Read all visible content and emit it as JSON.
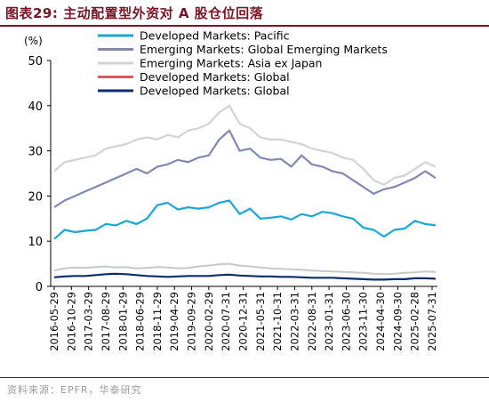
{
  "figure": {
    "title": "图表29:  主动配置型外资对 A 股仓位回落",
    "source": "资料来源：EPFR，华泰研究"
  },
  "colors": {
    "title": "#7a1322",
    "pacific": "#1aa7d8",
    "gem": "#7f88b4",
    "asia": "#d3d3d3",
    "global_red": "#e25656",
    "global_navy": "#0c2d6b"
  },
  "chart_data": {
    "type": "line",
    "ylabel": "(%)",
    "ylim": [
      0,
      50
    ],
    "yticks": [
      0,
      10,
      20,
      30,
      40,
      50
    ],
    "x_tick_labels": [
      "2016-05-29",
      "2016-10-29",
      "2017-03-29",
      "2017-08-29",
      "2018-01-29",
      "2018-06-29",
      "2018-11-29",
      "2019-04-29",
      "2019-09-29",
      "2020-02-29",
      "2020-07-31",
      "2020-12-31",
      "2021-05-31",
      "2021-10-31",
      "2022-03-31",
      "2022-08-31",
      "2023-01-31",
      "2023-06-30",
      "2023-11-30",
      "2024-04-30",
      "2024-09-30",
      "2025-02-28",
      "2025-07-31"
    ],
    "legend_position": "top",
    "series": [
      {
        "name": "Developed Markets: Pacific",
        "color": "#1aa7d8",
        "width": 2.2,
        "x": [
          "2016-05",
          "2016-08",
          "2016-11",
          "2017-02",
          "2017-05",
          "2017-08",
          "2017-11",
          "2018-02",
          "2018-05",
          "2018-08",
          "2018-11",
          "2019-02",
          "2019-05",
          "2019-08",
          "2019-11",
          "2020-02",
          "2020-05",
          "2020-08",
          "2020-11",
          "2021-02",
          "2021-05",
          "2021-08",
          "2021-11",
          "2022-02",
          "2022-05",
          "2022-08",
          "2022-11",
          "2023-02",
          "2023-05",
          "2023-08",
          "2023-11",
          "2024-02",
          "2024-05",
          "2024-08",
          "2024-11",
          "2025-02",
          "2025-05",
          "2025-08"
        ],
        "y": [
          10.5,
          12.5,
          12,
          12.3,
          12.5,
          13.8,
          13.5,
          14.5,
          13.8,
          15,
          18,
          18.5,
          17,
          17.5,
          17.2,
          17.5,
          18.5,
          19,
          16,
          17.2,
          15,
          15.2,
          15.5,
          14.8,
          16,
          15.5,
          16.5,
          16.2,
          15.5,
          15,
          13,
          12.5,
          11,
          12.5,
          12.8,
          14.5,
          13.8,
          13.5
        ]
      },
      {
        "name": "Emerging Markets: Global Emerging Markets",
        "color": "#7f88b4",
        "width": 2.2,
        "x": [
          "2016-05",
          "2016-08",
          "2016-11",
          "2017-02",
          "2017-05",
          "2017-08",
          "2017-11",
          "2018-02",
          "2018-05",
          "2018-08",
          "2018-11",
          "2019-02",
          "2019-05",
          "2019-08",
          "2019-11",
          "2020-02",
          "2020-05",
          "2020-08",
          "2020-11",
          "2021-02",
          "2021-05",
          "2021-08",
          "2021-11",
          "2022-02",
          "2022-05",
          "2022-08",
          "2022-11",
          "2023-02",
          "2023-05",
          "2023-08",
          "2023-11",
          "2024-02",
          "2024-05",
          "2024-08",
          "2024-11",
          "2025-02",
          "2025-05",
          "2025-08"
        ],
        "y": [
          17.5,
          19,
          20,
          21,
          22,
          23,
          24,
          25,
          26,
          25,
          26.5,
          27,
          28,
          27.5,
          28.5,
          29,
          32.5,
          34.5,
          30,
          30.5,
          28.5,
          28,
          28.2,
          26.5,
          29,
          27,
          26.5,
          25.5,
          25,
          23.5,
          22,
          20.5,
          21.5,
          22,
          23,
          24,
          25.5,
          24
        ]
      },
      {
        "name": "Emerging Markets: Asia ex Japan",
        "color": "#d3d3d3",
        "width": 2.2,
        "x": [
          "2016-05",
          "2016-08",
          "2016-11",
          "2017-02",
          "2017-05",
          "2017-08",
          "2017-11",
          "2018-02",
          "2018-05",
          "2018-08",
          "2018-11",
          "2019-02",
          "2019-05",
          "2019-08",
          "2019-11",
          "2020-02",
          "2020-05",
          "2020-08",
          "2020-11",
          "2021-02",
          "2021-05",
          "2021-08",
          "2021-11",
          "2022-02",
          "2022-05",
          "2022-08",
          "2022-11",
          "2023-02",
          "2023-05",
          "2023-08",
          "2023-11",
          "2024-02",
          "2024-05",
          "2024-08",
          "2024-11",
          "2025-02",
          "2025-05",
          "2025-08"
        ],
        "y": [
          25.5,
          27.5,
          28,
          28.5,
          29,
          30.5,
          31,
          31.5,
          32.5,
          33,
          32.5,
          33.5,
          33,
          34.5,
          35,
          36,
          38.5,
          40,
          36,
          35,
          33,
          32.5,
          32.5,
          32,
          31.5,
          30.5,
          30,
          29.5,
          28.5,
          28,
          26,
          23.5,
          22.5,
          24,
          24.5,
          26,
          27.5,
          26.5
        ]
      },
      {
        "name": "Developed Markets: Global",
        "color": "#e25656",
        "width": 2.0,
        "x": [],
        "y": []
      },
      {
        "name": "Developed Markets: Global",
        "color": "#0c2d6b",
        "width": 2.2,
        "x": [
          "2016-05",
          "2016-08",
          "2016-11",
          "2017-02",
          "2017-05",
          "2017-08",
          "2017-11",
          "2018-02",
          "2018-05",
          "2018-08",
          "2018-11",
          "2019-02",
          "2019-05",
          "2019-08",
          "2019-11",
          "2020-02",
          "2020-05",
          "2020-08",
          "2020-11",
          "2021-02",
          "2021-05",
          "2021-08",
          "2021-11",
          "2022-02",
          "2022-05",
          "2022-08",
          "2022-11",
          "2023-02",
          "2023-05",
          "2023-08",
          "2023-11",
          "2024-02",
          "2024-05",
          "2024-08",
          "2024-11",
          "2025-02",
          "2025-05",
          "2025-08"
        ],
        "y": [
          2,
          2.2,
          2.3,
          2.3,
          2.5,
          2.7,
          2.8,
          2.7,
          2.5,
          2.3,
          2.2,
          2.1,
          2.2,
          2.3,
          2.3,
          2.3,
          2.5,
          2.6,
          2.4,
          2.3,
          2.2,
          2.2,
          2.1,
          2.1,
          2.0,
          1.9,
          1.9,
          1.9,
          1.8,
          1.7,
          1.6,
          1.5,
          1.5,
          1.6,
          1.6,
          1.8,
          1.8,
          1.7
        ]
      },
      {
        "name": "",
        "color": "#c8c8c8",
        "width": 2.0,
        "x": [
          "2016-05",
          "2016-08",
          "2016-11",
          "2017-02",
          "2017-05",
          "2017-08",
          "2017-11",
          "2018-02",
          "2018-05",
          "2018-08",
          "2018-11",
          "2019-02",
          "2019-05",
          "2019-08",
          "2019-11",
          "2020-02",
          "2020-05",
          "2020-08",
          "2020-11",
          "2021-02",
          "2021-05",
          "2021-08",
          "2021-11",
          "2022-02",
          "2022-05",
          "2022-08",
          "2022-11",
          "2023-02",
          "2023-05",
          "2023-08",
          "2023-11",
          "2024-02",
          "2024-05",
          "2024-08",
          "2024-11",
          "2025-02",
          "2025-05",
          "2025-08"
        ],
        "y": [
          3.5,
          4.0,
          4.2,
          4.1,
          4.3,
          4.4,
          4.2,
          4.3,
          4.0,
          4.1,
          4.3,
          4.2,
          4.0,
          4.1,
          4.4,
          4.6,
          4.9,
          5.0,
          4.6,
          4.4,
          4.2,
          4.0,
          3.9,
          3.8,
          3.7,
          3.5,
          3.4,
          3.3,
          3.2,
          3.1,
          3.0,
          2.8,
          2.7,
          2.8,
          3.0,
          3.1,
          3.3,
          3.2
        ]
      }
    ]
  }
}
